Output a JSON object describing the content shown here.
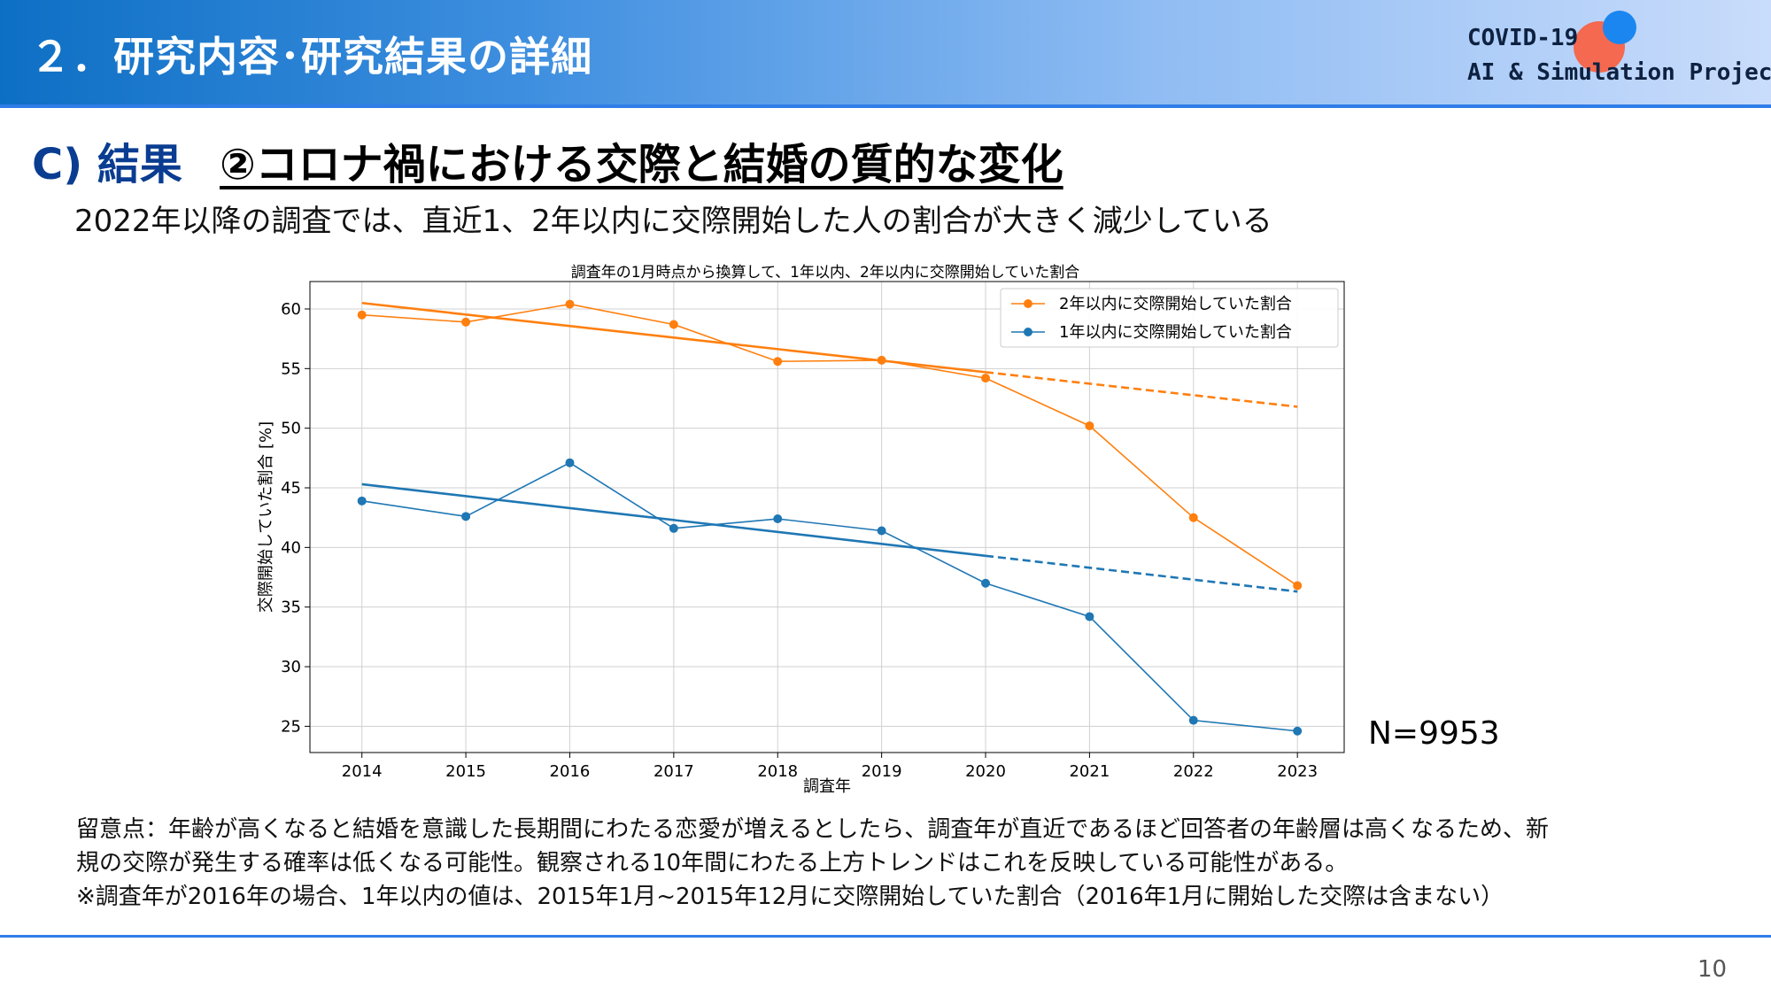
{
  "header": {
    "section_title": "２．研究内容･研究結果の詳細",
    "logo_line1": "COVID-19",
    "logo_line2": "AI & Simulation Project"
  },
  "slide": {
    "title": "C) 結果",
    "subtitle": "②コロナ禍における交際と結婚の質的な変化",
    "lead": "2022年以降の調査では、直近1、2年以内に交際開始した人の割合が大きく減少している",
    "sample_size": "N=9953",
    "notes": [
      "留意点：年齢が高くなると結婚を意識した長期間にわたる恋愛が増えるとしたら、調査年が直近であるほど回答者の年齢層は高くなるため、新",
      "規の交際が発生する確率は低くなる可能性。観察される10年間にわたる上方トレンドはこれを反映している可能性がある。",
      "※調査年が2016年の場合、1年以内の値は、2015年1月~2015年12月に交際開始していた割合（2016年1月に開始した交際は含まない）"
    ],
    "page_number": "10"
  },
  "colors": {
    "orange": "#ff7f0e",
    "blue": "#1f77b4",
    "title_blue": "#0a3d91"
  },
  "chart_data": {
    "type": "line",
    "title": "調査年の1月時点から換算して、1年以内、2年以内に交際開始していた割合",
    "xlabel": "調査年",
    "ylabel": "交際開始していた割合 [%]",
    "x": [
      2014,
      2015,
      2016,
      2017,
      2018,
      2019,
      2020,
      2021,
      2022,
      2023
    ],
    "xlim": [
      2013.5,
      2023.45
    ],
    "ylim": [
      22.8,
      62.3
    ],
    "yticks": [
      25,
      30,
      35,
      40,
      45,
      50,
      55,
      60
    ],
    "grid": true,
    "legend_position": "top-right",
    "series": [
      {
        "name": "2年以内に交際開始していた割合",
        "color": "#ff7f0e",
        "values": [
          59.5,
          58.9,
          60.4,
          58.7,
          55.6,
          55.7,
          54.2,
          50.2,
          42.5,
          36.8
        ],
        "trend": {
          "x_start": 2014,
          "y_start": 60.5,
          "x_fit_end": 2020,
          "y_fit_end": 54.7,
          "x_end": 2023,
          "y_end": 51.8
        }
      },
      {
        "name": "1年以内に交際開始していた割合",
        "color": "#1f77b4",
        "values": [
          43.9,
          42.6,
          47.1,
          41.6,
          42.4,
          41.4,
          37.0,
          34.2,
          25.5,
          24.6
        ],
        "trend": {
          "x_start": 2014,
          "y_start": 45.3,
          "x_fit_end": 2020,
          "y_fit_end": 39.3,
          "x_end": 2023,
          "y_end": 36.3
        }
      }
    ]
  }
}
